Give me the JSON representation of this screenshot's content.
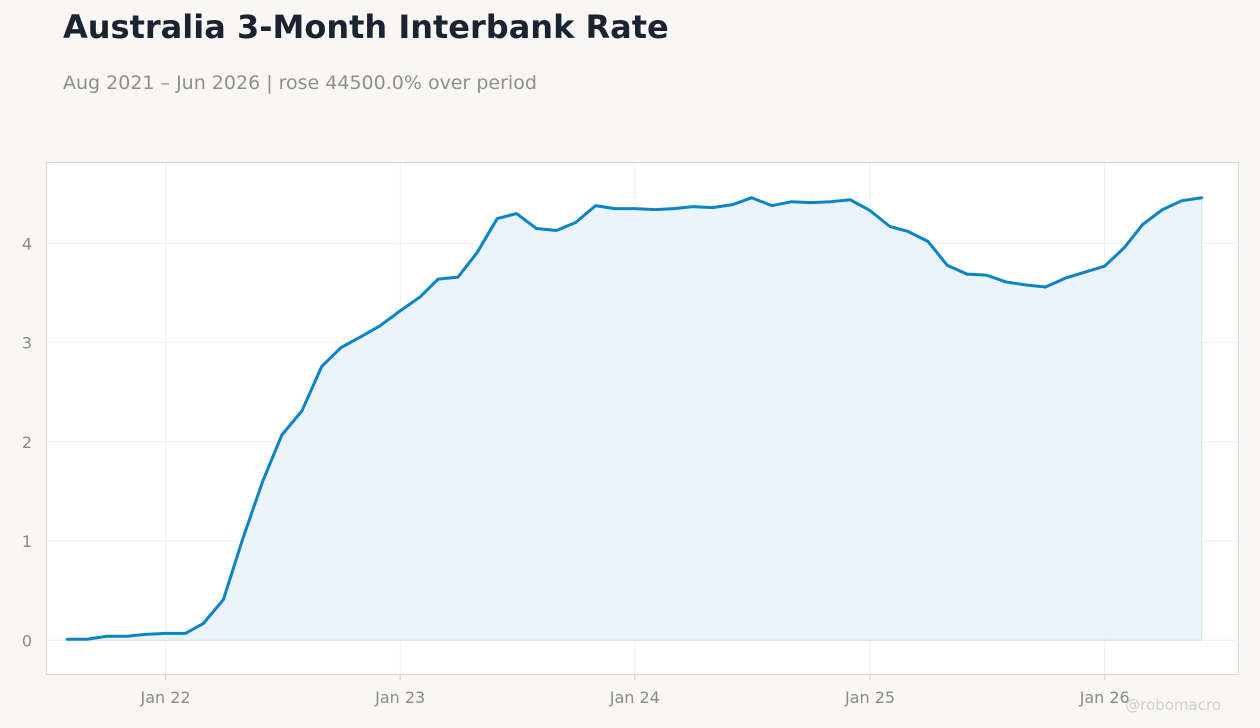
{
  "header": {
    "title": "Australia 3-Month Interbank Rate",
    "subtitle": "Aug 2021 – Jun 2026 | rose 44500.0% over period"
  },
  "watermark": "@robomacro",
  "colors": {
    "background": "#f8f7f4",
    "plot_background": "#ffffff",
    "line": "#0a84c6",
    "fill": "#e9f3fb",
    "grid": "#efefef",
    "title": "#1b2333",
    "subtitle": "#8e8e8e"
  },
  "chart_data": {
    "type": "area",
    "title": "Australia 3-Month Interbank Rate",
    "xlabel": "",
    "ylabel": "",
    "x_range": [
      "2021-06-29",
      "2026-07-29"
    ],
    "ylim": [
      -0.35,
      4.82
    ],
    "yticks": [
      0,
      1,
      2,
      3,
      4
    ],
    "xticks": [
      {
        "date": "2022-01-01",
        "label": "Jan 22"
      },
      {
        "date": "2023-01-01",
        "label": "Jan 23"
      },
      {
        "date": "2024-01-01",
        "label": "Jan 24"
      },
      {
        "date": "2025-01-01",
        "label": "Jan 25"
      },
      {
        "date": "2026-01-01",
        "label": "Jan 26"
      }
    ],
    "grid": true,
    "series": [
      {
        "x": [
          "2021-08-01",
          "2021-09-01",
          "2021-10-01",
          "2021-11-01",
          "2021-12-01",
          "2022-01-01",
          "2022-02-01",
          "2022-03-01",
          "2022-04-01",
          "2022-05-01",
          "2022-06-01",
          "2022-07-01",
          "2022-08-01",
          "2022-09-01",
          "2022-10-01",
          "2022-11-01",
          "2022-12-01",
          "2023-01-01",
          "2023-02-01",
          "2023-03-01",
          "2023-04-01",
          "2023-05-01",
          "2023-06-01",
          "2023-07-01",
          "2023-08-01",
          "2023-09-01",
          "2023-10-01",
          "2023-11-01",
          "2023-12-01",
          "2024-01-01",
          "2024-02-01",
          "2024-03-01",
          "2024-04-01",
          "2024-05-01",
          "2024-06-01",
          "2024-07-01",
          "2024-08-01",
          "2024-09-01",
          "2024-10-01",
          "2024-11-01",
          "2024-12-01",
          "2025-01-01",
          "2025-02-01",
          "2025-03-01",
          "2025-04-01",
          "2025-05-01",
          "2025-06-01",
          "2025-07-01",
          "2025-08-01",
          "2025-09-01",
          "2025-10-01",
          "2025-11-01",
          "2025-12-01",
          "2026-01-01",
          "2026-02-01",
          "2026-03-01",
          "2026-04-01",
          "2026-05-01",
          "2026-06-01"
        ],
        "y": [
          0.01,
          0.01,
          0.04,
          0.04,
          0.06,
          0.07,
          0.07,
          0.17,
          0.41,
          1.02,
          1.6,
          2.07,
          2.31,
          2.76,
          2.95,
          3.06,
          3.17,
          3.32,
          3.46,
          3.64,
          3.66,
          3.91,
          4.25,
          4.3,
          4.15,
          4.13,
          4.21,
          4.38,
          4.35,
          4.35,
          4.34,
          4.35,
          4.37,
          4.36,
          4.39,
          4.46,
          4.38,
          4.42,
          4.41,
          4.42,
          4.44,
          4.33,
          4.17,
          4.12,
          4.02,
          3.78,
          3.69,
          3.68,
          3.61,
          3.58,
          3.56,
          3.65,
          3.71,
          3.77,
          3.96,
          4.19,
          4.34,
          4.43,
          4.46
        ]
      }
    ]
  }
}
